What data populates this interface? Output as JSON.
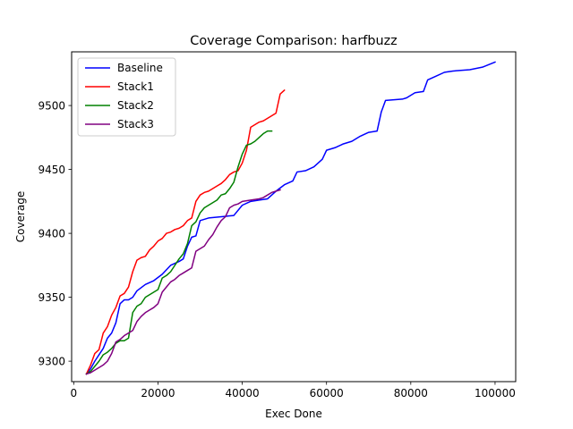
{
  "chart_data": {
    "type": "line",
    "title": "Coverage Comparison: harfbuzz",
    "xlabel": "Exec Done",
    "ylabel": "Coverage",
    "xlim": [
      -500,
      104900
    ],
    "ylim": [
      9284,
      9542
    ],
    "xticks": [
      0,
      20000,
      40000,
      60000,
      80000,
      100000
    ],
    "xtick_labels": [
      "0",
      "20000",
      "40000",
      "60000",
      "80000",
      "100000"
    ],
    "yticks": [
      9300,
      9350,
      9400,
      9450,
      9500
    ],
    "ytick_labels": [
      "9300",
      "9350",
      "9400",
      "9450",
      "9500"
    ],
    "grid": false,
    "legend_position": "upper-left",
    "series": [
      {
        "name": "Baseline",
        "color": "#0000ff",
        "points": [
          [
            3000,
            9290
          ],
          [
            4000,
            9294
          ],
          [
            5000,
            9300
          ],
          [
            6000,
            9305
          ],
          [
            7000,
            9310
          ],
          [
            8000,
            9318
          ],
          [
            9000,
            9322
          ],
          [
            10000,
            9330
          ],
          [
            11000,
            9345
          ],
          [
            12000,
            9348
          ],
          [
            13000,
            9348
          ],
          [
            14000,
            9350
          ],
          [
            15000,
            9355
          ],
          [
            17000,
            9360
          ],
          [
            19000,
            9363
          ],
          [
            21000,
            9368
          ],
          [
            23000,
            9375
          ],
          [
            25000,
            9378
          ],
          [
            26000,
            9380
          ],
          [
            27000,
            9390
          ],
          [
            28000,
            9397
          ],
          [
            29000,
            9398
          ],
          [
            30000,
            9410
          ],
          [
            32000,
            9412
          ],
          [
            38000,
            9414
          ],
          [
            40000,
            9422
          ],
          [
            42000,
            9425
          ],
          [
            44000,
            9426
          ],
          [
            46000,
            9427
          ],
          [
            48000,
            9433
          ],
          [
            50000,
            9438
          ],
          [
            52000,
            9441
          ],
          [
            53000,
            9448
          ],
          [
            55000,
            9449
          ],
          [
            57000,
            9452
          ],
          [
            59000,
            9458
          ],
          [
            60000,
            9465
          ],
          [
            62000,
            9467
          ],
          [
            64000,
            9470
          ],
          [
            66000,
            9472
          ],
          [
            68000,
            9476
          ],
          [
            70000,
            9479
          ],
          [
            72000,
            9480
          ],
          [
            73000,
            9495
          ],
          [
            74000,
            9504
          ],
          [
            78000,
            9505
          ],
          [
            79000,
            9506
          ],
          [
            81000,
            9510
          ],
          [
            83000,
            9511
          ],
          [
            84000,
            9520
          ],
          [
            86000,
            9523
          ],
          [
            88000,
            9526
          ],
          [
            90000,
            9527
          ],
          [
            94000,
            9528
          ],
          [
            97000,
            9530
          ],
          [
            100000,
            9534
          ]
        ]
      },
      {
        "name": "Stack1",
        "color": "#ff0000",
        "points": [
          [
            3000,
            9290
          ],
          [
            4000,
            9297
          ],
          [
            5000,
            9306
          ],
          [
            6000,
            9309
          ],
          [
            7000,
            9322
          ],
          [
            8000,
            9327
          ],
          [
            9000,
            9336
          ],
          [
            10000,
            9342
          ],
          [
            11000,
            9351
          ],
          [
            12000,
            9353
          ],
          [
            13000,
            9358
          ],
          [
            14000,
            9370
          ],
          [
            15000,
            9379
          ],
          [
            16000,
            9381
          ],
          [
            17000,
            9382
          ],
          [
            18000,
            9387
          ],
          [
            19000,
            9390
          ],
          [
            20000,
            9394
          ],
          [
            21000,
            9396
          ],
          [
            22000,
            9400
          ],
          [
            23000,
            9401
          ],
          [
            24000,
            9403
          ],
          [
            25000,
            9404
          ],
          [
            26000,
            9406
          ],
          [
            27000,
            9410
          ],
          [
            28000,
            9412
          ],
          [
            29000,
            9425
          ],
          [
            30000,
            9430
          ],
          [
            31000,
            9432
          ],
          [
            32000,
            9433
          ],
          [
            34000,
            9437
          ],
          [
            35000,
            9439
          ],
          [
            36000,
            9442
          ],
          [
            37000,
            9446
          ],
          [
            38000,
            9448
          ],
          [
            39000,
            9449
          ],
          [
            40000,
            9455
          ],
          [
            41000,
            9465
          ],
          [
            42000,
            9483
          ],
          [
            43000,
            9485
          ],
          [
            44000,
            9487
          ],
          [
            45000,
            9488
          ],
          [
            46000,
            9490
          ],
          [
            48000,
            9494
          ],
          [
            49000,
            9509
          ],
          [
            50000,
            9512
          ]
        ]
      },
      {
        "name": "Stack2",
        "color": "#008000",
        "points": [
          [
            3000,
            9290
          ],
          [
            4000,
            9292
          ],
          [
            5000,
            9296
          ],
          [
            6000,
            9300
          ],
          [
            7000,
            9305
          ],
          [
            8000,
            9307
          ],
          [
            9000,
            9310
          ],
          [
            10000,
            9314
          ],
          [
            11000,
            9316
          ],
          [
            12000,
            9316
          ],
          [
            13000,
            9318
          ],
          [
            14000,
            9338
          ],
          [
            15000,
            9343
          ],
          [
            16000,
            9345
          ],
          [
            17000,
            9350
          ],
          [
            18000,
            9352
          ],
          [
            19000,
            9354
          ],
          [
            20000,
            9356
          ],
          [
            21000,
            9365
          ],
          [
            22000,
            9367
          ],
          [
            23000,
            9370
          ],
          [
            24000,
            9375
          ],
          [
            25000,
            9380
          ],
          [
            26000,
            9384
          ],
          [
            27000,
            9392
          ],
          [
            28000,
            9406
          ],
          [
            29000,
            9409
          ],
          [
            30000,
            9416
          ],
          [
            31000,
            9420
          ],
          [
            32000,
            9422
          ],
          [
            33000,
            9424
          ],
          [
            34000,
            9426
          ],
          [
            35000,
            9430
          ],
          [
            36000,
            9431
          ],
          [
            37000,
            9435
          ],
          [
            38000,
            9440
          ],
          [
            39000,
            9452
          ],
          [
            40000,
            9462
          ],
          [
            41000,
            9469
          ],
          [
            42000,
            9470
          ],
          [
            43000,
            9472
          ],
          [
            44000,
            9475
          ],
          [
            45000,
            9478
          ],
          [
            46000,
            9480
          ],
          [
            47000,
            9480
          ]
        ]
      },
      {
        "name": "Stack3",
        "color": "#800080",
        "points": [
          [
            3000,
            9290
          ],
          [
            4000,
            9291
          ],
          [
            5000,
            9293
          ],
          [
            6000,
            9295
          ],
          [
            7000,
            9297
          ],
          [
            8000,
            9300
          ],
          [
            9000,
            9306
          ],
          [
            10000,
            9315
          ],
          [
            11000,
            9317
          ],
          [
            12000,
            9320
          ],
          [
            13000,
            9322
          ],
          [
            14000,
            9324
          ],
          [
            15000,
            9331
          ],
          [
            16000,
            9335
          ],
          [
            17000,
            9338
          ],
          [
            18000,
            9340
          ],
          [
            19000,
            9342
          ],
          [
            20000,
            9345
          ],
          [
            21000,
            9354
          ],
          [
            22000,
            9358
          ],
          [
            23000,
            9362
          ],
          [
            24000,
            9364
          ],
          [
            25000,
            9367
          ],
          [
            26000,
            9369
          ],
          [
            27000,
            9371
          ],
          [
            28000,
            9373
          ],
          [
            29000,
            9386
          ],
          [
            30000,
            9388
          ],
          [
            31000,
            9390
          ],
          [
            32000,
            9395
          ],
          [
            33000,
            9399
          ],
          [
            34000,
            9405
          ],
          [
            35000,
            9410
          ],
          [
            36000,
            9413
          ],
          [
            37000,
            9420
          ],
          [
            38000,
            9422
          ],
          [
            39000,
            9423
          ],
          [
            40000,
            9425
          ],
          [
            42000,
            9426
          ],
          [
            44000,
            9427
          ],
          [
            45000,
            9428
          ],
          [
            46000,
            9430
          ],
          [
            47000,
            9432
          ],
          [
            48000,
            9433
          ],
          [
            49000,
            9434
          ]
        ]
      }
    ]
  }
}
